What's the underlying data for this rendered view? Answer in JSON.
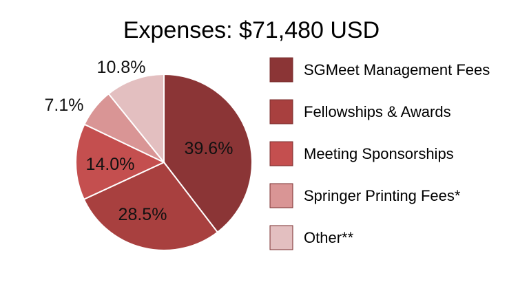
{
  "chart_data": {
    "type": "pie",
    "title": "Expenses: $71,480 USD",
    "slices": [
      {
        "label": "SGMeet Management Fees",
        "value": 39.6,
        "display": "39.6%",
        "color": "#8b3536"
      },
      {
        "label": "Fellowships & Awards",
        "value": 28.5,
        "display": "28.5%",
        "color": "#a8403f"
      },
      {
        "label": "Meeting Sponsorships",
        "value": 14.0,
        "display": "14.0%",
        "color": "#c44f4f"
      },
      {
        "label": "Springer Printing Fees*",
        "value": 7.1,
        "display": "7.1%",
        "color": "#d99595"
      },
      {
        "label": "Other**",
        "value": 10.8,
        "display": "10.8%",
        "color": "#e3bfc0"
      }
    ],
    "legend_position": "right",
    "start": "12 o'clock",
    "direction": "clockwise"
  }
}
